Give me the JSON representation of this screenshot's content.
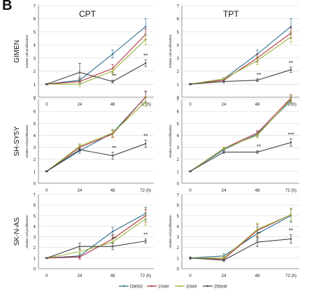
{
  "panel_label": "B",
  "columns": [
    "CPT",
    "TPT"
  ],
  "rows": [
    "GIMEN",
    "SH-SY5Y",
    "SK-N-AS"
  ],
  "ylabel": "relative cell proliferation",
  "x_ticks": [
    "0",
    "24",
    "48",
    "72 (h)"
  ],
  "y_ticks": [
    "0",
    "1",
    "2",
    "3",
    "4",
    "5",
    "6",
    "7"
  ],
  "series_colors": {
    "DMSO": "#2f6f8f",
    "10nM": "#b0303a",
    "20nM": "#9ab43a",
    "250nM": "#444444"
  },
  "legend": [
    "DMSO",
    "10nM",
    "20nM",
    "250nM"
  ],
  "chart_data": [
    {
      "type": "line",
      "row": "GIMEN",
      "column": "CPT",
      "x": [
        0,
        24,
        48,
        72
      ],
      "ylim": [
        0,
        7
      ],
      "series": [
        {
          "name": "DMSO",
          "values": [
            1.0,
            1.3,
            3.3,
            5.4
          ],
          "err": [
            0.05,
            0.2,
            0.3,
            0.6
          ]
        },
        {
          "name": "10nM",
          "values": [
            1.0,
            1.2,
            2.2,
            4.8
          ],
          "err": [
            0.05,
            0.2,
            0.3,
            0.4
          ]
        },
        {
          "name": "20nM",
          "values": [
            1.0,
            1.0,
            2.0,
            4.4
          ],
          "err": [
            0.05,
            0.2,
            0.2,
            0.4
          ]
        },
        {
          "name": "250nM",
          "values": [
            1.0,
            1.9,
            1.2,
            2.6
          ],
          "err": [
            0.05,
            0.7,
            0.1,
            0.25
          ]
        }
      ],
      "annotations": [
        {
          "x": 48,
          "text": "**"
        },
        {
          "x": 72,
          "text": "**"
        }
      ]
    },
    {
      "type": "line",
      "row": "GIMEN",
      "column": "TPT",
      "x": [
        0,
        24,
        48,
        72
      ],
      "ylim": [
        0,
        7
      ],
      "series": [
        {
          "name": "DMSO",
          "values": [
            1.0,
            1.4,
            3.3,
            5.4
          ],
          "err": [
            0.05,
            0.1,
            0.3,
            0.6
          ]
        },
        {
          "name": "10nM",
          "values": [
            1.0,
            1.3,
            3.0,
            4.9
          ],
          "err": [
            0.05,
            0.1,
            0.3,
            0.4
          ]
        },
        {
          "name": "20nM",
          "values": [
            1.0,
            1.4,
            2.8,
            4.6
          ],
          "err": [
            0.05,
            0.1,
            0.3,
            0.4
          ]
        },
        {
          "name": "250nM",
          "values": [
            1.0,
            1.2,
            1.3,
            2.1
          ],
          "err": [
            0.05,
            0.1,
            0.1,
            0.2
          ]
        }
      ],
      "annotations": [
        {
          "x": 48,
          "text": "**"
        },
        {
          "x": 72,
          "text": "**"
        }
      ]
    },
    {
      "type": "line",
      "row": "SH-SY5Y",
      "column": "CPT",
      "x": [
        0,
        24,
        48,
        72
      ],
      "ylim": [
        0,
        7
      ],
      "series": [
        {
          "name": "DMSO",
          "values": [
            1.0,
            2.7,
            4.2,
            7.2
          ],
          "err": [
            0.05,
            0.2,
            0.3,
            0.4
          ]
        },
        {
          "name": "10nM",
          "values": [
            1.0,
            3.0,
            4.1,
            7.2
          ],
          "err": [
            0.05,
            0.2,
            0.3,
            0.5
          ]
        },
        {
          "name": "20nM",
          "values": [
            1.0,
            3.1,
            4.2,
            6.8
          ],
          "err": [
            0.05,
            0.2,
            0.3,
            0.4
          ]
        },
        {
          "name": "250nM",
          "values": [
            1.0,
            2.8,
            2.3,
            3.3
          ],
          "err": [
            0.05,
            0.1,
            0.3,
            0.3
          ]
        }
      ],
      "annotations": [
        {
          "x": 48,
          "text": "**"
        },
        {
          "x": 72,
          "text": "**"
        }
      ]
    },
    {
      "type": "line",
      "row": "SH-SY5Y",
      "column": "TPT",
      "x": [
        0,
        24,
        48,
        72
      ],
      "ylim": [
        0,
        7
      ],
      "series": [
        {
          "name": "DMSO",
          "values": [
            1.0,
            2.8,
            4.1,
            6.9
          ],
          "err": [
            0.05,
            0.1,
            0.2,
            0.3
          ]
        },
        {
          "name": "10nM",
          "values": [
            1.0,
            2.9,
            4.2,
            7.1
          ],
          "err": [
            0.05,
            0.1,
            0.2,
            0.3
          ]
        },
        {
          "name": "20nM",
          "values": [
            1.0,
            2.9,
            4.0,
            7.0
          ],
          "err": [
            0.05,
            0.1,
            0.2,
            0.3
          ]
        },
        {
          "name": "250nM",
          "values": [
            1.0,
            2.6,
            2.6,
            3.4
          ],
          "err": [
            0.05,
            0.1,
            0.1,
            0.3
          ]
        }
      ],
      "annotations": [
        {
          "x": 48,
          "text": "**"
        },
        {
          "x": 72,
          "text": "***"
        }
      ]
    },
    {
      "type": "line",
      "row": "SK-N-AS",
      "column": "CPT",
      "x": [
        0,
        24,
        48,
        72
      ],
      "ylim": [
        0,
        7
      ],
      "series": [
        {
          "name": "DMSO",
          "values": [
            1.0,
            1.2,
            3.5,
            5.2
          ],
          "err": [
            0.05,
            0.2,
            0.4,
            0.6
          ]
        },
        {
          "name": "10nM",
          "values": [
            1.0,
            1.1,
            2.8,
            5.0
          ],
          "err": [
            0.05,
            0.2,
            0.4,
            0.6
          ]
        },
        {
          "name": "20nM",
          "values": [
            1.0,
            1.6,
            2.5,
            4.7
          ],
          "err": [
            0.05,
            0.3,
            0.4,
            0.6
          ]
        },
        {
          "name": "250nM",
          "values": [
            1.0,
            2.1,
            2.1,
            2.6
          ],
          "err": [
            0.05,
            0.3,
            0.3,
            0.2
          ]
        }
      ],
      "annotations": [
        {
          "x": 48,
          "text": "**"
        },
        {
          "x": 72,
          "text": "**"
        }
      ]
    },
    {
      "type": "line",
      "row": "SK-N-AS",
      "column": "TPT",
      "x": [
        0,
        24,
        48,
        72
      ],
      "ylim": [
        0,
        7
      ],
      "series": [
        {
          "name": "DMSO",
          "values": [
            1.0,
            1.2,
            3.3,
            5.0
          ],
          "err": [
            0.1,
            0.2,
            0.6,
            0.6
          ]
        },
        {
          "name": "10nM",
          "values": [
            1.0,
            0.9,
            3.6,
            5.1
          ],
          "err": [
            0.1,
            0.2,
            0.6,
            0.6
          ]
        },
        {
          "name": "20nM",
          "values": [
            1.0,
            1.0,
            3.7,
            5.1
          ],
          "err": [
            0.1,
            0.2,
            0.6,
            0.6
          ]
        },
        {
          "name": "250nM",
          "values": [
            1.0,
            0.8,
            2.5,
            2.8
          ],
          "err": [
            0.1,
            0.1,
            0.4,
            0.4
          ]
        }
      ],
      "annotations": [
        {
          "x": 48,
          "text": "**"
        },
        {
          "x": 72,
          "text": "**"
        }
      ]
    }
  ]
}
